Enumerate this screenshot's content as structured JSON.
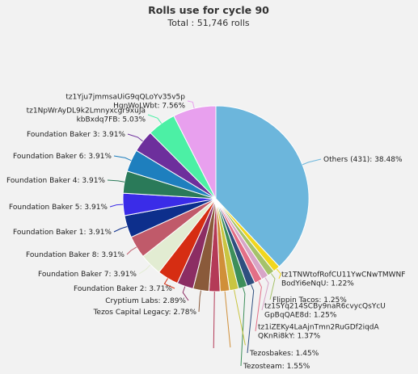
{
  "chart_data": {
    "type": "pie",
    "title": "Rolls use for cycle 90",
    "subtitle": "Total : 51,746 rolls",
    "slices": [
      {
        "lines": [
          "Others (431): 38.48%"
        ],
        "value": 38.48,
        "color": "#6cb6dc"
      },
      {
        "lines": [
          "tz1TNWtofRofCU11YwCNwTMWNF",
          "BodYi6eNqU: 1.22%"
        ],
        "value": 1.22,
        "color": "#f1d71e"
      },
      {
        "lines": [
          "Flippin Tacos: 1.25%"
        ],
        "value": 1.25,
        "color": "#a5c26b"
      },
      {
        "lines": [
          "tz1SYq214SCBy9naR6cvycQsYcU",
          "GpBqQAE8d: 1.25%"
        ],
        "value": 1.25,
        "color": "#d8a5c7"
      },
      {
        "lines": [
          "tz1iZEKy4LaAjnTmn2RuGDf2iqdA",
          "QKnRi8kY: 1.37%"
        ],
        "value": 1.37,
        "color": "#e36f87"
      },
      {
        "lines": [
          "Tezosbakes: 1.45%"
        ],
        "value": 1.45,
        "color": "#2f4f7f"
      },
      {
        "lines": [
          "Tezosteam: 1.55%"
        ],
        "value": 1.55,
        "color": "#3d8f5a"
      },
      {
        "lines": [
          ""
        ],
        "value": 1.6,
        "color": "#c9c541"
      },
      {
        "lines": [
          ""
        ],
        "value": 1.65,
        "color": "#d08f39"
      },
      {
        "lines": [
          ""
        ],
        "value": 1.95,
        "color": "#b43a57"
      },
      {
        "lines": [
          "Tezos Capital Legacy: 2.78%"
        ],
        "value": 2.78,
        "color": "#8a5a3a"
      },
      {
        "lines": [
          "Cryptium Labs: 2.89%"
        ],
        "value": 2.89,
        "color": "#8c2d63"
      },
      {
        "lines": [
          "Foundation Baker 2: 3.71%"
        ],
        "value": 3.71,
        "color": "#d62d12"
      },
      {
        "lines": [
          "Foundation Baker 7: 3.91%"
        ],
        "value": 3.91,
        "color": "#e2ecd2"
      },
      {
        "lines": [
          "Foundation Baker 8: 3.91%"
        ],
        "value": 3.91,
        "color": "#c05a6a"
      },
      {
        "lines": [
          "Foundation Baker 1: 3.91%"
        ],
        "value": 3.91,
        "color": "#0d2f8c"
      },
      {
        "lines": [
          "Foundation Baker 5: 3.91%"
        ],
        "value": 3.91,
        "color": "#3a2ce8"
      },
      {
        "lines": [
          "Foundation Baker 4: 3.91%"
        ],
        "value": 3.91,
        "color": "#2a7a59"
      },
      {
        "lines": [
          "Foundation Baker 6: 3.91%"
        ],
        "value": 3.91,
        "color": "#1e7fbe"
      },
      {
        "lines": [
          "Foundation Baker 3: 3.91%"
        ],
        "value": 3.91,
        "color": "#6d2f9c"
      },
      {
        "lines": [
          "tz1NpWrAyDL9k2Lmnyxcgr9xuJa",
          "kbBxdq7FB: 5.03%"
        ],
        "value": 5.03,
        "color": "#4cf0a5"
      },
      {
        "lines": [
          "tz1Yju7jmmsaUiG9qQLoYv35v5p",
          "HgnWoLWbt: 7.56%"
        ],
        "value": 7.56,
        "color": "#e8a0ee"
      }
    ]
  }
}
